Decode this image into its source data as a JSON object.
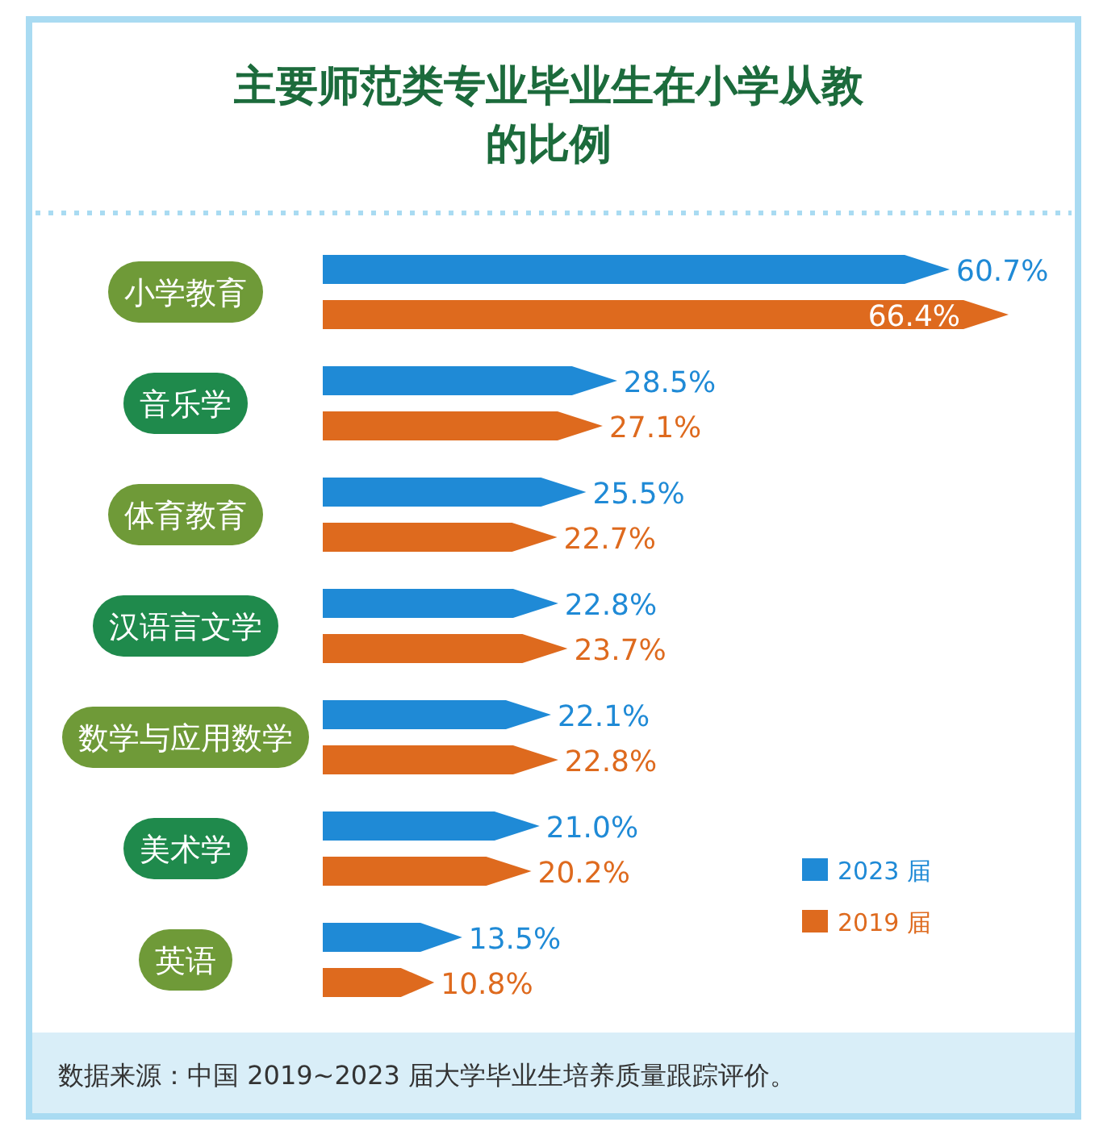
{
  "chart_data": {
    "type": "bar",
    "orientation": "horizontal",
    "title": "主要师范类专业毕业生在小学从教的比例",
    "categories": [
      "小学教育",
      "音乐学",
      "体育教育",
      "汉语言文学",
      "数学与应用数学",
      "美术学",
      "英语"
    ],
    "series": [
      {
        "name": "2023 届",
        "color": "#1f8ad6",
        "values": [
          60.7,
          28.5,
          25.5,
          22.8,
          22.1,
          21.0,
          13.5
        ],
        "value_labels": [
          "60.7%",
          "28.5%",
          "25.5%",
          "22.8%",
          "22.1%",
          "21.0%",
          "13.5%"
        ]
      },
      {
        "name": "2019 届",
        "color": "#de6a1e",
        "values": [
          66.4,
          27.1,
          22.7,
          23.7,
          22.8,
          20.2,
          10.8
        ],
        "value_labels": [
          "66.4%",
          "27.1%",
          "22.7%",
          "23.7%",
          "22.8%",
          "20.2%",
          "10.8%"
        ]
      }
    ],
    "legend": "bottom right",
    "annotations": [
      "数据来源：中国 2019~2023 届大学毕业生培养质量跟踪评价。"
    ]
  }
}
